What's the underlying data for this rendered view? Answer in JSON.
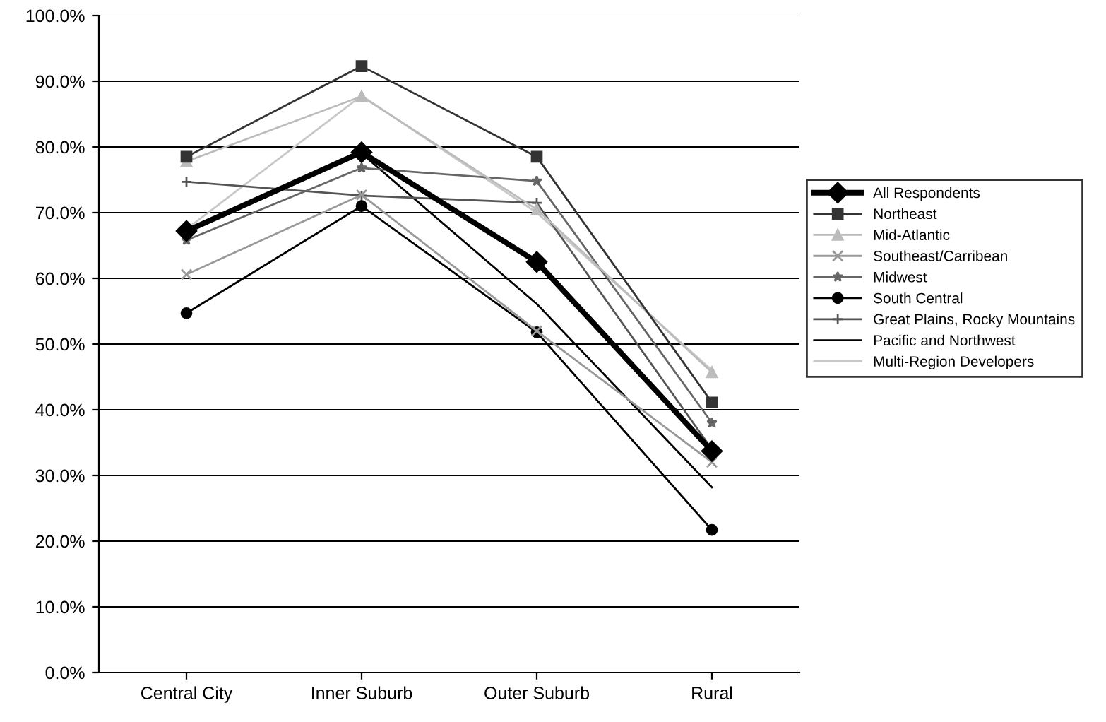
{
  "chart_data": {
    "type": "line",
    "categories": [
      "Central City",
      "Inner Suburb",
      "Outer Suburb",
      "Rural"
    ],
    "series": [
      {
        "name": "All Respondents",
        "color": "#000000",
        "marker": "diamond",
        "values": [
          67.2,
          79.2,
          62.5,
          33.7
        ]
      },
      {
        "name": "Northeast",
        "color": "#333333",
        "marker": "square",
        "values": [
          78.5,
          92.3,
          78.5,
          41.1
        ]
      },
      {
        "name": "Mid-Atlantic",
        "color": "#bbbbbb",
        "marker": "triangle",
        "values": [
          77.8,
          87.7,
          70.5,
          45.7
        ]
      },
      {
        "name": "Southeast/Carribean",
        "color": "#999999",
        "marker": "x",
        "values": [
          60.6,
          72.7,
          52.0,
          32.0
        ]
      },
      {
        "name": "Midwest",
        "color": "#666666",
        "marker": "star",
        "values": [
          65.8,
          76.8,
          74.8,
          38.0
        ]
      },
      {
        "name": "South Central",
        "color": "#000000",
        "marker": "circle",
        "values": [
          54.7,
          71.0,
          51.8,
          21.7
        ]
      },
      {
        "name": "Great Plains, Rocky Mountains",
        "color": "#555555",
        "marker": "cross",
        "values": [
          74.7,
          72.6,
          71.5,
          34.0
        ]
      },
      {
        "name": "Pacific and Northwest",
        "color": "#000000",
        "marker": "none",
        "values": [
          67.0,
          79.0,
          56.1,
          28.2
        ]
      },
      {
        "name": "Multi-Region Developers",
        "color": "#c8c8c8",
        "marker": "none",
        "values": [
          67.5,
          87.8,
          70.0,
          46.0
        ]
      }
    ],
    "ylim": [
      0,
      100
    ],
    "yticks": [
      {
        "value": 0,
        "label": "0.0%"
      },
      {
        "value": 10,
        "label": "10.0%"
      },
      {
        "value": 20,
        "label": "20.0%"
      },
      {
        "value": 30,
        "label": "30.0%"
      },
      {
        "value": 40,
        "label": "40.0%"
      },
      {
        "value": 50,
        "label": "50.0%"
      },
      {
        "value": 60,
        "label": "60.0%"
      },
      {
        "value": 70,
        "label": "70.0%"
      },
      {
        "value": 80,
        "label": "80.0%"
      },
      {
        "value": 90,
        "label": "90.0%"
      },
      {
        "value": 100,
        "label": "100.0%"
      }
    ],
    "grid": "y",
    "legend": "right"
  }
}
